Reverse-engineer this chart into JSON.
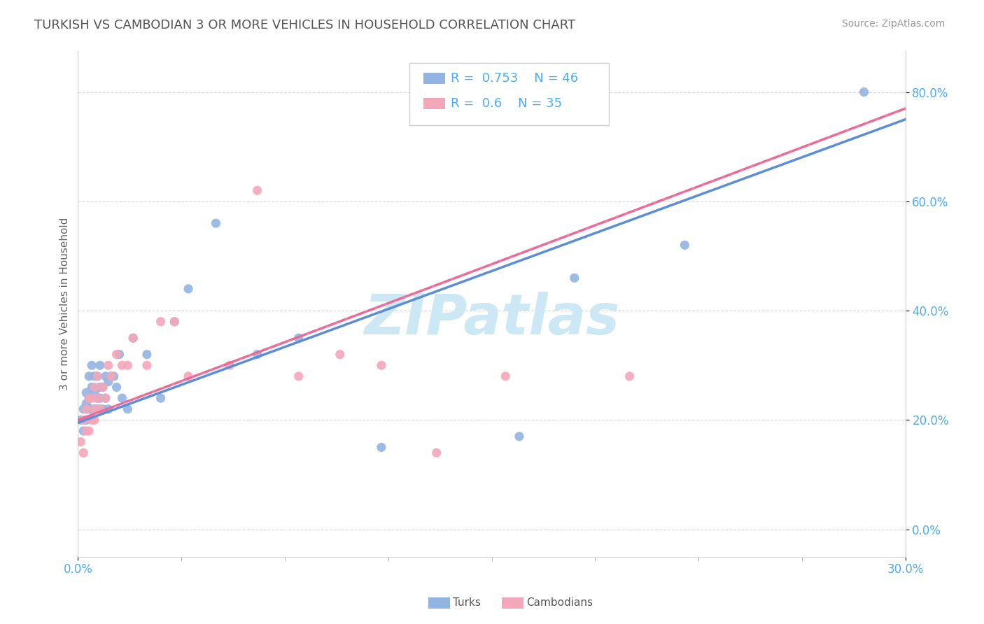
{
  "title": "TURKISH VS CAMBODIAN 3 OR MORE VEHICLES IN HOUSEHOLD CORRELATION CHART",
  "source": "Source: ZipAtlas.com",
  "ylabel": "3 or more Vehicles in Household",
  "ytick_vals": [
    0.0,
    0.2,
    0.4,
    0.6,
    0.8
  ],
  "xmin": 0.0,
  "xmax": 0.3,
  "ymin": -0.05,
  "ymax": 0.875,
  "turks_R": 0.753,
  "turks_N": 46,
  "cambodians_R": 0.6,
  "cambodians_N": 35,
  "turk_color": "#92b4e3",
  "cambodian_color": "#f4a7b9",
  "turk_line_color": "#5b8dd9",
  "cambodian_line_color": "#f06090",
  "dash_line_color": "#d0a0b0",
  "watermark": "ZIPatlas",
  "watermark_color": "#cce8f4",
  "title_color": "#555555",
  "axis_label_color": "#4dabf7",
  "legend_R_color": "#4dabf7",
  "turks_x": [
    0.001,
    0.002,
    0.002,
    0.003,
    0.003,
    0.003,
    0.004,
    0.004,
    0.004,
    0.005,
    0.005,
    0.005,
    0.006,
    0.006,
    0.006,
    0.007,
    0.007,
    0.007,
    0.008,
    0.008,
    0.008,
    0.009,
    0.009,
    0.01,
    0.01,
    0.011,
    0.011,
    0.012,
    0.013,
    0.014,
    0.015,
    0.016,
    0.018,
    0.02,
    0.025,
    0.03,
    0.035,
    0.04,
    0.05,
    0.065,
    0.08,
    0.11,
    0.16,
    0.18,
    0.22,
    0.285
  ],
  "turks_y": [
    0.2,
    0.22,
    0.18,
    0.25,
    0.2,
    0.23,
    0.22,
    0.28,
    0.24,
    0.26,
    0.22,
    0.3,
    0.25,
    0.22,
    0.28,
    0.24,
    0.28,
    0.22,
    0.26,
    0.3,
    0.24,
    0.26,
    0.22,
    0.24,
    0.28,
    0.27,
    0.22,
    0.28,
    0.28,
    0.26,
    0.32,
    0.24,
    0.22,
    0.35,
    0.32,
    0.24,
    0.38,
    0.44,
    0.56,
    0.32,
    0.35,
    0.15,
    0.17,
    0.46,
    0.52,
    0.8
  ],
  "cambodians_x": [
    0.001,
    0.002,
    0.002,
    0.003,
    0.003,
    0.004,
    0.004,
    0.005,
    0.005,
    0.006,
    0.006,
    0.006,
    0.007,
    0.007,
    0.008,
    0.009,
    0.01,
    0.011,
    0.012,
    0.014,
    0.016,
    0.018,
    0.02,
    0.025,
    0.03,
    0.035,
    0.04,
    0.055,
    0.065,
    0.08,
    0.095,
    0.11,
    0.13,
    0.155,
    0.2
  ],
  "cambodians_y": [
    0.16,
    0.2,
    0.14,
    0.22,
    0.18,
    0.24,
    0.18,
    0.24,
    0.2,
    0.22,
    0.26,
    0.2,
    0.24,
    0.28,
    0.22,
    0.26,
    0.24,
    0.3,
    0.28,
    0.32,
    0.3,
    0.3,
    0.35,
    0.3,
    0.38,
    0.38,
    0.28,
    0.3,
    0.62,
    0.28,
    0.32,
    0.3,
    0.14,
    0.28,
    0.28
  ]
}
